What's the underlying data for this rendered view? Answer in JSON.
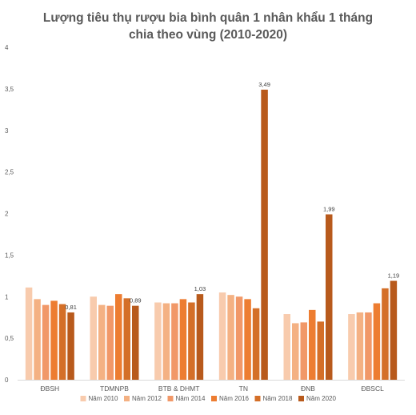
{
  "chart_data": {
    "type": "bar",
    "title": "Lượng tiêu thụ rượu bia bình quân 1 nhân khẩu 1 tháng",
    "subtitle": "chia theo vùng (2010-2020)",
    "categories": [
      "ĐBSH",
      "TDMNPB",
      "BTB & DHMT",
      "TN",
      "ĐNB",
      "ĐBSCL"
    ],
    "series": [
      {
        "name": "Năm 2010",
        "color": "#f8cbad",
        "values": [
          1.11,
          1.0,
          0.93,
          1.05,
          0.79,
          0.79
        ]
      },
      {
        "name": "Năm 2012",
        "color": "#f4b183",
        "values": [
          0.97,
          0.9,
          0.92,
          1.02,
          0.68,
          0.81
        ]
      },
      {
        "name": "Năm 2014",
        "color": "#f19868",
        "values": [
          0.9,
          0.89,
          0.92,
          1.0,
          0.69,
          0.81
        ]
      },
      {
        "name": "Năm 2016",
        "color": "#ed7d31",
        "values": [
          0.95,
          1.03,
          0.97,
          0.97,
          0.84,
          0.92
        ]
      },
      {
        "name": "Năm 2018",
        "color": "#d46f28",
        "values": [
          0.91,
          0.98,
          0.93,
          0.86,
          0.7,
          1.1
        ]
      },
      {
        "name": "Năm 2020",
        "color": "#b85a1c",
        "values": [
          0.81,
          0.89,
          1.03,
          3.49,
          1.99,
          1.19
        ]
      }
    ],
    "data_labels": [
      "0,81",
      "0,89",
      "1,03",
      "3,49",
      "1,99",
      "1,19"
    ],
    "data_label_series": "Năm 2020",
    "ylim": [
      0,
      4
    ],
    "yticks": [
      "0",
      "0,5",
      "1",
      "1,5",
      "2",
      "2,5",
      "3",
      "3,5",
      "4"
    ],
    "ytick_values": [
      0,
      0.5,
      1,
      1.5,
      2,
      2.5,
      3,
      3.5,
      4
    ],
    "grid": false,
    "legend_position": "bottom"
  }
}
